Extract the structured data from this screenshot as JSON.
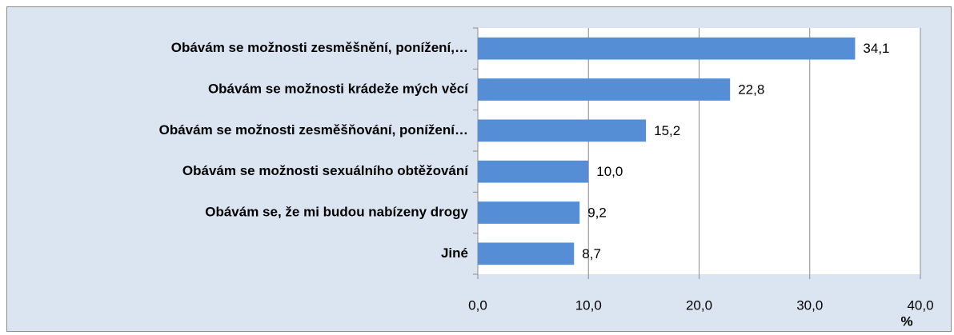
{
  "chart_data": {
    "type": "bar",
    "orientation": "horizontal",
    "categories": [
      "Obávám se možnosti zesměšnění, ponížení,…",
      "Obávám se možnosti krádeže mých věcí",
      "Obávám se možnosti zesměšňování, ponížení…",
      "Obávám se možnosti sexuálního obtěžování",
      "Obávám se, že mi budou nabízeny drogy",
      "Jiné"
    ],
    "values": [
      34.1,
      22.8,
      15.2,
      10.0,
      9.2,
      8.7
    ],
    "value_labels": [
      "34,1",
      "22,8",
      "15,2",
      "10,0",
      "9,2",
      "8,7"
    ],
    "color": "#558ed5",
    "xlim": [
      0,
      40
    ],
    "xticks": [
      {
        "value": 0,
        "label": "0,0"
      },
      {
        "value": 10,
        "label": "10,0"
      },
      {
        "value": 20,
        "label": "20,0"
      },
      {
        "value": 30,
        "label": "30,0"
      },
      {
        "value": 40,
        "label": "40,0"
      }
    ],
    "x_label": "%",
    "grid": true
  }
}
